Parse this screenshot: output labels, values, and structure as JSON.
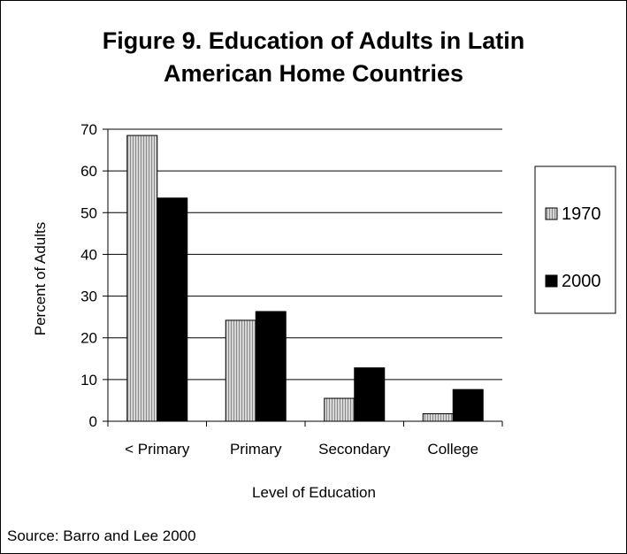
{
  "chart_data": {
    "type": "bar",
    "title_line1": "Figure 9. Education of Adults in Latin",
    "title_line2": "American Home Countries",
    "xlabel": "Level of Education",
    "ylabel": "Percent of Adults",
    "categories": [
      "< Primary",
      "Primary",
      "Secondary",
      "College"
    ],
    "series": [
      {
        "name": "1970",
        "values": [
          68.5,
          24.2,
          5.5,
          1.8
        ],
        "pattern": "gray-stripes"
      },
      {
        "name": "2000",
        "values": [
          53.5,
          26.3,
          12.8,
          7.6
        ],
        "color": "#000000"
      }
    ],
    "ylim": [
      0,
      70
    ],
    "yticks": [
      0,
      10,
      20,
      30,
      40,
      50,
      60,
      70
    ],
    "grid": true,
    "legend": "right",
    "source": "Source: Barro and Lee 2000"
  }
}
